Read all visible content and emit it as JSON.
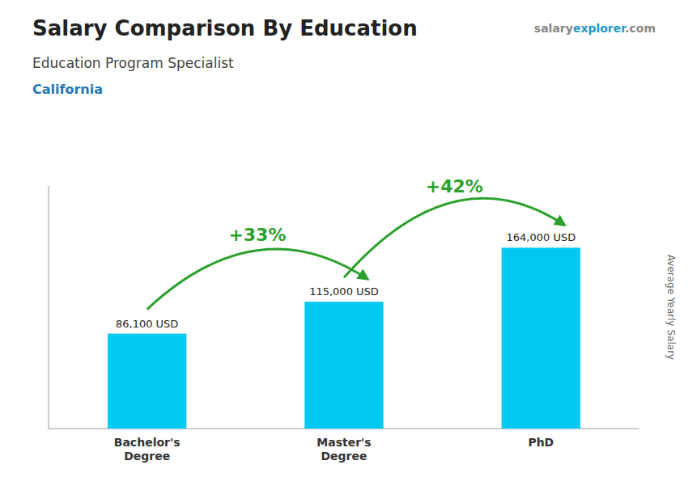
{
  "chart_data": {
    "type": "bar",
    "title": "Salary Comparison By Education",
    "subtitle": "Education Program Specialist",
    "y_label": "Average Yearly Salary",
    "annotations": [
      "California",
      "salary",
      "explorer",
      ".com",
      "+33%",
      "+42%"
    ],
    "categories": [
      "Bachelor's\nDegree",
      "Master's\nDegree",
      "PhD"
    ],
    "values": [
      86100,
      115000,
      164000
    ],
    "value_labels": [
      "86,100 USD",
      "115,000 USD",
      "164,000 USD"
    ],
    "data_labels": true,
    "color": "#00c8f0",
    "ylim": [
      0,
      220000
    ],
    "tick_labels": "x",
    "grid": false
  }
}
